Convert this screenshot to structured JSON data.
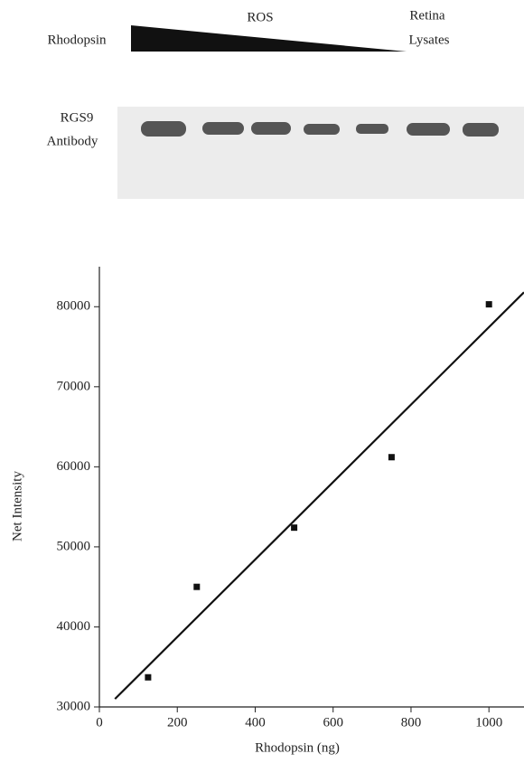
{
  "blot": {
    "left_label": "Rhodopsin",
    "top_label": "ROS",
    "right_label": [
      "Retina",
      "Lysates"
    ],
    "row_label": [
      "RGS9",
      "Antibody"
    ]
  },
  "chart_data": {
    "type": "scatter",
    "x_label": "Rhodopsin (ng)",
    "y_label": "Net Intensity",
    "series": [
      {
        "x": [
          125,
          250,
          500,
          750,
          1000
        ],
        "values": [
          33700,
          45000,
          52400,
          61200,
          80300
        ],
        "color": "#111"
      }
    ],
    "fit_line": {
      "x": [
        40,
        1090
      ],
      "values": [
        31000,
        81800
      ],
      "color": "#111"
    },
    "xlim": [
      0,
      1090
    ],
    "xticks": [
      0,
      200,
      400,
      600,
      800,
      1000
    ],
    "ylim": [
      30000,
      85000
    ],
    "yticks": [
      30000,
      40000,
      50000,
      60000,
      70000,
      80000
    ],
    "grid": false
  }
}
